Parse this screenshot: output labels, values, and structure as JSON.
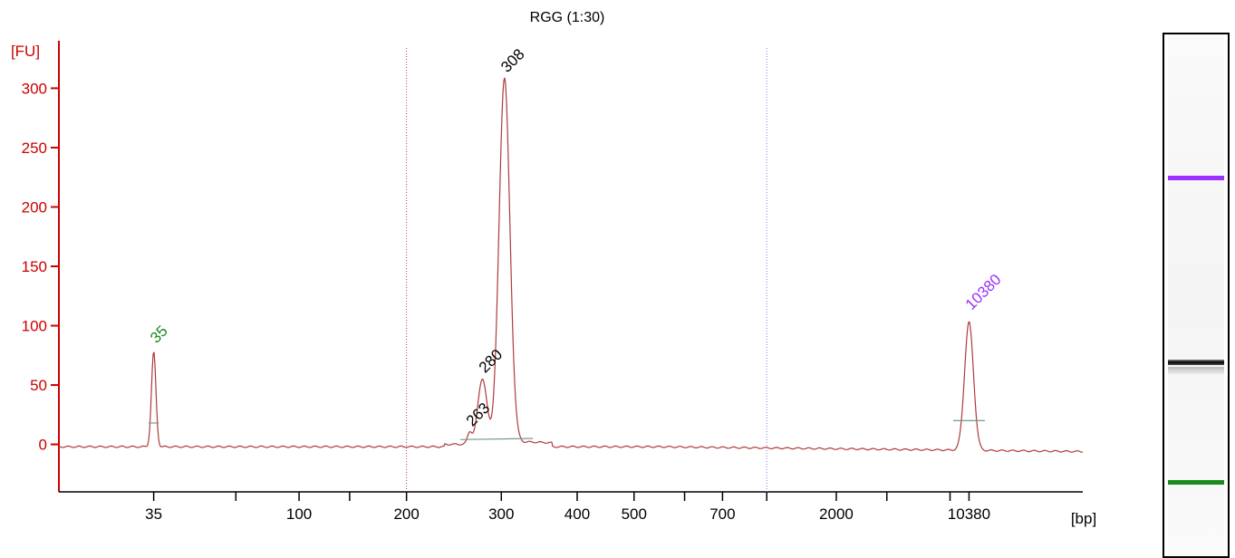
{
  "chart_data": {
    "type": "line",
    "title": "RGG (1:30)",
    "ylabel": "[FU]",
    "xlabel": "[bp]",
    "ylim": [
      -40,
      340
    ],
    "yticks": [
      0,
      50,
      100,
      150,
      200,
      250,
      300
    ],
    "xticks": [
      {
        "label": "35",
        "time": 43.0
      },
      {
        "label": "",
        "time": 44.3
      },
      {
        "label": "100",
        "time": 45.3
      },
      {
        "label": "",
        "time": 46.1
      },
      {
        "label": "200",
        "time": 47.0
      },
      {
        "label": "300",
        "time": 48.5
      },
      {
        "label": "400",
        "time": 49.7
      },
      {
        "label": "500",
        "time": 50.6
      },
      {
        "label": "",
        "time": 51.4
      },
      {
        "label": "700",
        "time": 52.0
      },
      {
        "label": "",
        "time": 52.7
      },
      {
        "label": "2000",
        "time": 53.8
      },
      {
        "label": "",
        "time": 54.6
      },
      {
        "label": "",
        "time": 55.6
      },
      {
        "label": "10380",
        "time": 55.9
      }
    ],
    "peaks": [
      {
        "label": "35",
        "time": 43.0,
        "height": 80,
        "width": 0.05,
        "color": "#1a8a1a"
      },
      {
        "label": "263",
        "time": 48.0,
        "height": 10,
        "width": 0.05,
        "color": "#000000"
      },
      {
        "label": "280",
        "time": 48.2,
        "height": 55,
        "width": 0.1,
        "color": "#000000"
      },
      {
        "label": "308",
        "time": 48.55,
        "height": 308,
        "width": 0.12,
        "color": "#000000"
      },
      {
        "label": "10380",
        "time": 55.9,
        "height": 108,
        "width": 0.1,
        "color": "#9b30ff"
      }
    ],
    "markers": [
      47.0,
      52.7
    ],
    "colors": {
      "axis": "#cc0000",
      "trace": "#b03a3a",
      "marker_peak": "#9b30ff",
      "lower_marker": "#1a8a1a",
      "band_main": "#111111"
    }
  }
}
